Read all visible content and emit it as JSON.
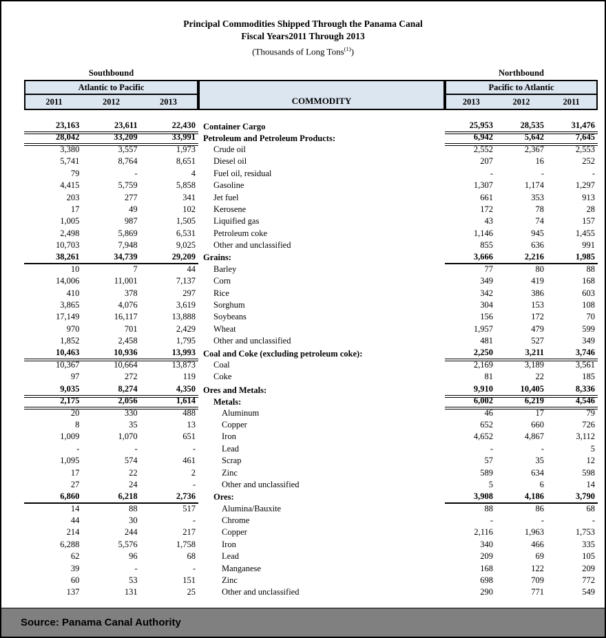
{
  "title": {
    "line1": "Principal Commodities Shipped Through the Panama Canal",
    "line2": "Fiscal Years2011 Through 2013",
    "line3_pre": "(Thousands of Long Tons",
    "line3_sup": "(1)",
    "line3_post": ")"
  },
  "header": {
    "left_direction": "Southbound",
    "left_route": "Atlantic to Pacific",
    "left_years": [
      "2011",
      "2012",
      "2013"
    ],
    "commodity_label": "COMMODITY",
    "right_direction": "Northbound",
    "right_route": "Pacific to Atlantic",
    "right_years": [
      "2013",
      "2012",
      "2011"
    ]
  },
  "colors": {
    "header_fill": "#dce6f1",
    "footer_bar": "#808080",
    "border": "#000000",
    "text": "#000000"
  },
  "table": {
    "rows": [
      {
        "label": "Container Cargo",
        "indent": 0,
        "bold": true,
        "rule": "double",
        "left": [
          "23,163",
          "23,611",
          "22,430"
        ],
        "right": [
          "25,953",
          "28,535",
          "31,476"
        ]
      },
      {
        "label": "Petroleum and Petroleum Products:",
        "indent": 0,
        "bold": true,
        "rule": "double",
        "left": [
          "28,042",
          "33,209",
          "33,991"
        ],
        "right": [
          "6,942",
          "5,642",
          "7,645"
        ]
      },
      {
        "label": "Crude oil",
        "indent": 1,
        "bold": false,
        "rule": "none",
        "left": [
          "3,380",
          "3,557",
          "1,973"
        ],
        "right": [
          "2,552",
          "2,367",
          "2,553"
        ]
      },
      {
        "label": "Diesel oil",
        "indent": 1,
        "bold": false,
        "rule": "none",
        "left": [
          "5,741",
          "8,764",
          "8,651"
        ],
        "right": [
          "207",
          "16",
          "252"
        ]
      },
      {
        "label": "Fuel oil, residual",
        "indent": 1,
        "bold": false,
        "rule": "none",
        "left": [
          "79",
          "-",
          "4"
        ],
        "right": [
          "-",
          "-",
          "-"
        ]
      },
      {
        "label": "Gasoline",
        "indent": 1,
        "bold": false,
        "rule": "none",
        "left": [
          "4,415",
          "5,759",
          "5,858"
        ],
        "right": [
          "1,307",
          "1,174",
          "1,297"
        ]
      },
      {
        "label": "Jet fuel",
        "indent": 1,
        "bold": false,
        "rule": "none",
        "left": [
          "203",
          "277",
          "341"
        ],
        "right": [
          "661",
          "353",
          "913"
        ]
      },
      {
        "label": "Kerosene",
        "indent": 1,
        "bold": false,
        "rule": "none",
        "left": [
          "17",
          "49",
          "102"
        ],
        "right": [
          "172",
          "78",
          "28"
        ]
      },
      {
        "label": "Liquified gas",
        "indent": 1,
        "bold": false,
        "rule": "none",
        "left": [
          "1,005",
          "987",
          "1,505"
        ],
        "right": [
          "43",
          "74",
          "157"
        ]
      },
      {
        "label": "Petroleum coke",
        "indent": 1,
        "bold": false,
        "rule": "none",
        "left": [
          "2,498",
          "5,869",
          "6,531"
        ],
        "right": [
          "1,146",
          "945",
          "1,455"
        ]
      },
      {
        "label": "Other and unclassified",
        "indent": 1,
        "bold": false,
        "rule": "none",
        "left": [
          "10,703",
          "7,948",
          "9,025"
        ],
        "right": [
          "855",
          "636",
          "991"
        ]
      },
      {
        "label": "Grains:",
        "indent": 0,
        "bold": true,
        "rule": "single",
        "left": [
          "38,261",
          "34,739",
          "29,209"
        ],
        "right": [
          "3,666",
          "2,216",
          "1,985"
        ]
      },
      {
        "label": "Barley",
        "indent": 1,
        "bold": false,
        "rule": "none",
        "left": [
          "10",
          "7",
          "44"
        ],
        "right": [
          "77",
          "80",
          "88"
        ]
      },
      {
        "label": "Corn",
        "indent": 1,
        "bold": false,
        "rule": "none",
        "left": [
          "14,006",
          "11,001",
          "7,137"
        ],
        "right": [
          "349",
          "419",
          "168"
        ]
      },
      {
        "label": "Rice",
        "indent": 1,
        "bold": false,
        "rule": "none",
        "left": [
          "410",
          "378",
          "297"
        ],
        "right": [
          "342",
          "386",
          "603"
        ]
      },
      {
        "label": "Sorghum",
        "indent": 1,
        "bold": false,
        "rule": "none",
        "left": [
          "3,865",
          "4,076",
          "3,619"
        ],
        "right": [
          "304",
          "153",
          "108"
        ]
      },
      {
        "label": "Soybeans",
        "indent": 1,
        "bold": false,
        "rule": "none",
        "left": [
          "17,149",
          "16,117",
          "13,888"
        ],
        "right": [
          "156",
          "172",
          "70"
        ]
      },
      {
        "label": "Wheat",
        "indent": 1,
        "bold": false,
        "rule": "none",
        "left": [
          "970",
          "701",
          "2,429"
        ],
        "right": [
          "1,957",
          "479",
          "599"
        ]
      },
      {
        "label": "Other and unclassified",
        "indent": 1,
        "bold": false,
        "rule": "none",
        "left": [
          "1,852",
          "2,458",
          "1,795"
        ],
        "right": [
          "481",
          "527",
          "349"
        ]
      },
      {
        "label": "Coal and Coke (excluding petroleum coke):",
        "indent": 0,
        "bold": true,
        "rule": "double",
        "left": [
          "10,463",
          "10,936",
          "13,993"
        ],
        "right": [
          "2,250",
          "3,211",
          "3,746"
        ]
      },
      {
        "label": "Coal",
        "indent": 1,
        "bold": false,
        "rule": "none",
        "left": [
          "10,367",
          "10,664",
          "13,873"
        ],
        "right": [
          "2,169",
          "3,189",
          "3,561"
        ]
      },
      {
        "label": "Coke",
        "indent": 1,
        "bold": false,
        "rule": "none",
        "left": [
          "97",
          "272",
          "119"
        ],
        "right": [
          "81",
          "22",
          "185"
        ]
      },
      {
        "label": "Ores and Metals:",
        "indent": 0,
        "bold": true,
        "rule": "double",
        "left": [
          "9,035",
          "8,274",
          "4,350"
        ],
        "right": [
          "9,910",
          "10,405",
          "8,336"
        ]
      },
      {
        "label": "Metals:",
        "indent": 1,
        "bold": true,
        "rule": "double",
        "left": [
          "2,175",
          "2,056",
          "1,614"
        ],
        "right": [
          "6,002",
          "6,219",
          "4,546"
        ]
      },
      {
        "label": "Aluminum",
        "indent": 2,
        "bold": false,
        "rule": "none",
        "left": [
          "20",
          "330",
          "488"
        ],
        "right": [
          "46",
          "17",
          "79"
        ]
      },
      {
        "label": "Copper",
        "indent": 2,
        "bold": false,
        "rule": "none",
        "left": [
          "8",
          "35",
          "13"
        ],
        "right": [
          "652",
          "660",
          "726"
        ]
      },
      {
        "label": "Iron",
        "indent": 2,
        "bold": false,
        "rule": "none",
        "left": [
          "1,009",
          "1,070",
          "651"
        ],
        "right": [
          "4,652",
          "4,867",
          "3,112"
        ]
      },
      {
        "label": "Lead",
        "indent": 2,
        "bold": false,
        "rule": "none",
        "left": [
          "-",
          "-",
          "-"
        ],
        "right": [
          "-",
          "-",
          "5"
        ]
      },
      {
        "label": "Scrap",
        "indent": 2,
        "bold": false,
        "rule": "none",
        "left": [
          "1,095",
          "574",
          "461"
        ],
        "right": [
          "57",
          "35",
          "12"
        ]
      },
      {
        "label": "Zinc",
        "indent": 2,
        "bold": false,
        "rule": "none",
        "left": [
          "17",
          "22",
          "2"
        ],
        "right": [
          "589",
          "634",
          "598"
        ]
      },
      {
        "label": "Other and unclassified",
        "indent": 2,
        "bold": false,
        "rule": "none",
        "left": [
          "27",
          "24",
          "-"
        ],
        "right": [
          "5",
          "6",
          "14"
        ]
      },
      {
        "label": "Ores:",
        "indent": 1,
        "bold": true,
        "rule": "single",
        "left": [
          "6,860",
          "6,218",
          "2,736"
        ],
        "right": [
          "3,908",
          "4,186",
          "3,790"
        ]
      },
      {
        "label": "Alumina/Bauxite",
        "indent": 2,
        "bold": false,
        "rule": "none",
        "left": [
          "14",
          "88",
          "517"
        ],
        "right": [
          "88",
          "86",
          "68"
        ]
      },
      {
        "label": "Chrome",
        "indent": 2,
        "bold": false,
        "rule": "none",
        "left": [
          "44",
          "30",
          "-"
        ],
        "right": [
          "-",
          "-",
          "-"
        ]
      },
      {
        "label": "Copper",
        "indent": 2,
        "bold": false,
        "rule": "none",
        "left": [
          "214",
          "244",
          "217"
        ],
        "right": [
          "2,116",
          "1,963",
          "1,753"
        ]
      },
      {
        "label": "Iron",
        "indent": 2,
        "bold": false,
        "rule": "none",
        "left": [
          "6,288",
          "5,576",
          "1,758"
        ],
        "right": [
          "340",
          "466",
          "335"
        ]
      },
      {
        "label": "Lead",
        "indent": 2,
        "bold": false,
        "rule": "none",
        "left": [
          "62",
          "96",
          "68"
        ],
        "right": [
          "209",
          "69",
          "105"
        ]
      },
      {
        "label": "Manganese",
        "indent": 2,
        "bold": false,
        "rule": "none",
        "left": [
          "39",
          "-",
          "-"
        ],
        "right": [
          "168",
          "122",
          "209"
        ]
      },
      {
        "label": "Zinc",
        "indent": 2,
        "bold": false,
        "rule": "none",
        "left": [
          "60",
          "53",
          "151"
        ],
        "right": [
          "698",
          "709",
          "772"
        ]
      },
      {
        "label": "Other and unclassified",
        "indent": 2,
        "bold": false,
        "rule": "none",
        "left": [
          "137",
          "131",
          "25"
        ],
        "right": [
          "290",
          "771",
          "549"
        ]
      }
    ]
  },
  "footer": {
    "source": "Source: Panama Canal Authority"
  }
}
